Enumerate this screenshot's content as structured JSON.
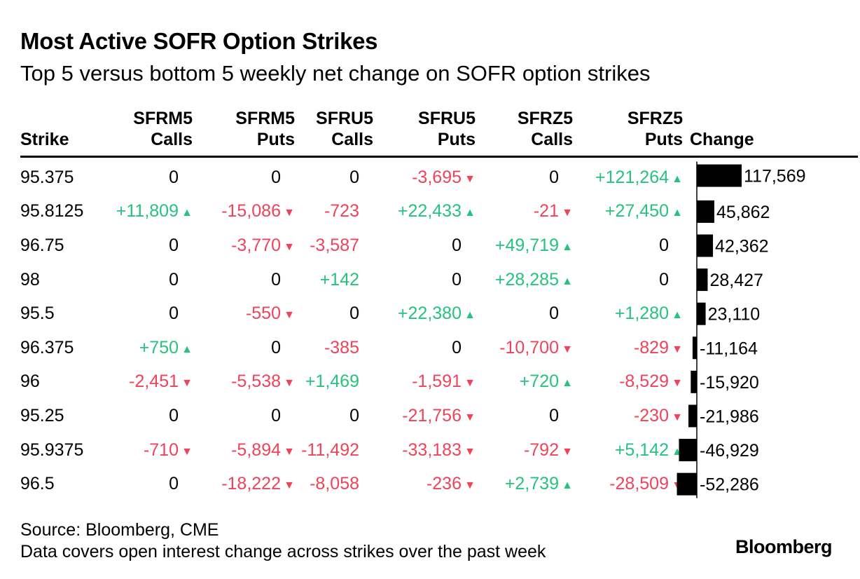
{
  "title": "Most Active SOFR Option Strikes",
  "subtitle": "Top 5 versus bottom 5 weekly net change on SOFR option strikes",
  "colors": {
    "positive": "#27c281",
    "negative": "#f0435a",
    "bar": "#000000"
  },
  "chart_data": {
    "type": "table",
    "columns": [
      {
        "key": "strike",
        "line1": "",
        "line2": "Strike"
      },
      {
        "key": "sfrm5_calls",
        "line1": "SFRM5",
        "line2": "Calls"
      },
      {
        "key": "sfrm5_puts",
        "line1": "SFRM5",
        "line2": "Puts"
      },
      {
        "key": "sfru5_calls",
        "line1": "SFRU5",
        "line2": "Calls"
      },
      {
        "key": "sfru5_puts",
        "line1": "SFRU5",
        "line2": "Puts"
      },
      {
        "key": "sfrz5_calls",
        "line1": "SFRZ5",
        "line2": "Calls"
      },
      {
        "key": "sfrz5_puts",
        "line1": "SFRZ5",
        "line2": "Puts"
      },
      {
        "key": "change",
        "line1": "",
        "line2": "Change"
      }
    ],
    "rows": [
      {
        "strike": "95.375",
        "cells": [
          {
            "text": "0",
            "dir": "zero"
          },
          {
            "text": "0",
            "dir": "zero"
          },
          {
            "text": "0",
            "dir": "zero"
          },
          {
            "text": "-3,695",
            "dir": "down"
          },
          {
            "text": "0",
            "dir": "zero"
          },
          {
            "text": "+121,264",
            "dir": "up"
          }
        ],
        "change_label": "117,569",
        "change": 117569
      },
      {
        "strike": "95.8125",
        "cells": [
          {
            "text": "+11,809",
            "dir": "up"
          },
          {
            "text": "-15,086",
            "dir": "down"
          },
          {
            "text": "-723",
            "dir": "neg"
          },
          {
            "text": "+22,433",
            "dir": "up"
          },
          {
            "text": "-21",
            "dir": "down"
          },
          {
            "text": "+27,450",
            "dir": "up"
          }
        ],
        "change_label": "45,862",
        "change": 45862
      },
      {
        "strike": "96.75",
        "cells": [
          {
            "text": "0",
            "dir": "zero"
          },
          {
            "text": "-3,770",
            "dir": "down"
          },
          {
            "text": "-3,587",
            "dir": "neg"
          },
          {
            "text": "0",
            "dir": "zero"
          },
          {
            "text": "+49,719",
            "dir": "up"
          },
          {
            "text": "0",
            "dir": "zero"
          }
        ],
        "change_label": "42,362",
        "change": 42362
      },
      {
        "strike": "98",
        "cells": [
          {
            "text": "0",
            "dir": "zero"
          },
          {
            "text": "0",
            "dir": "zero"
          },
          {
            "text": "+142",
            "dir": "pos"
          },
          {
            "text": "0",
            "dir": "zero"
          },
          {
            "text": "+28,285",
            "dir": "up"
          },
          {
            "text": "0",
            "dir": "zero"
          }
        ],
        "change_label": "28,427",
        "change": 28427
      },
      {
        "strike": "95.5",
        "cells": [
          {
            "text": "0",
            "dir": "zero"
          },
          {
            "text": "-550",
            "dir": "down"
          },
          {
            "text": "0",
            "dir": "zero"
          },
          {
            "text": "+22,380",
            "dir": "up"
          },
          {
            "text": "0",
            "dir": "zero"
          },
          {
            "text": "+1,280",
            "dir": "up"
          }
        ],
        "change_label": "23,110",
        "change": 23110
      },
      {
        "strike": "96.375",
        "cells": [
          {
            "text": "+750",
            "dir": "up"
          },
          {
            "text": "0",
            "dir": "zero"
          },
          {
            "text": "-385",
            "dir": "neg"
          },
          {
            "text": "0",
            "dir": "zero"
          },
          {
            "text": "-10,700",
            "dir": "down"
          },
          {
            "text": "-829",
            "dir": "down"
          }
        ],
        "change_label": "-11,164",
        "change": -11164
      },
      {
        "strike": "96",
        "cells": [
          {
            "text": "-2,451",
            "dir": "down"
          },
          {
            "text": "-5,538",
            "dir": "down"
          },
          {
            "text": "+1,469",
            "dir": "pos"
          },
          {
            "text": "-1,591",
            "dir": "down"
          },
          {
            "text": "+720",
            "dir": "up"
          },
          {
            "text": "-8,529",
            "dir": "down"
          }
        ],
        "change_label": "-15,920",
        "change": -15920
      },
      {
        "strike": "95.25",
        "cells": [
          {
            "text": "0",
            "dir": "zero"
          },
          {
            "text": "0",
            "dir": "zero"
          },
          {
            "text": "0",
            "dir": "zero"
          },
          {
            "text": "-21,756",
            "dir": "down"
          },
          {
            "text": "0",
            "dir": "zero"
          },
          {
            "text": "-230",
            "dir": "down"
          }
        ],
        "change_label": "-21,986",
        "change": -21986
      },
      {
        "strike": "95.9375",
        "cells": [
          {
            "text": "-710",
            "dir": "down"
          },
          {
            "text": "-5,894",
            "dir": "down"
          },
          {
            "text": "-11,492",
            "dir": "neg"
          },
          {
            "text": "-33,183",
            "dir": "down"
          },
          {
            "text": "-792",
            "dir": "down"
          },
          {
            "text": "+5,142",
            "dir": "up"
          }
        ],
        "change_label": "-46,929",
        "change": -46929
      },
      {
        "strike": "96.5",
        "cells": [
          {
            "text": "0",
            "dir": "zero"
          },
          {
            "text": "-18,222",
            "dir": "down"
          },
          {
            "text": "-8,058",
            "dir": "neg"
          },
          {
            "text": "-236",
            "dir": "down"
          },
          {
            "text": "+2,739",
            "dir": "up"
          },
          {
            "text": "-28,509",
            "dir": "down"
          }
        ],
        "change_label": "-52,286",
        "change": -52286
      }
    ],
    "change_range": [
      -52286,
      117569
    ]
  },
  "footer": {
    "source": "Source: Bloomberg, CME",
    "note": "Data covers open interest change across strikes over the past week",
    "logo": "Bloomberg"
  }
}
